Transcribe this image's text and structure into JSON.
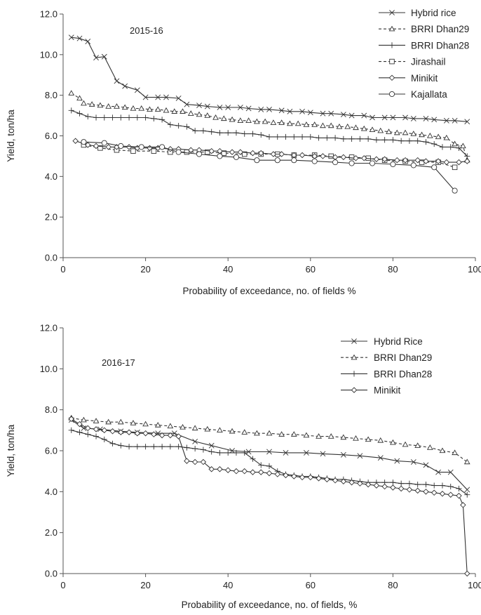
{
  "chart_data": [
    {
      "type": "line",
      "annotation": "2015-16",
      "xlabel": "Probability of exceedance, no. of fields %",
      "ylabel": "Yield, ton/ha",
      "xlim": [
        0,
        100
      ],
      "ylim": [
        0,
        12
      ],
      "xticks": [
        "0",
        "20",
        "40",
        "60",
        "80",
        "100"
      ],
      "yticks": [
        "0.0",
        "2.0",
        "4.0",
        "6.0",
        "8.0",
        "10.0",
        "12.0"
      ],
      "legend_position": "top-right",
      "series": [
        {
          "name": "Hybrid rice",
          "marker": "x",
          "dash": "solid",
          "x": [
            2,
            4,
            6,
            8,
            10,
            13,
            15,
            18,
            20,
            23,
            25,
            28,
            30,
            33,
            35,
            38,
            40,
            43,
            45,
            48,
            50,
            53,
            55,
            58,
            60,
            63,
            65,
            68,
            70,
            73,
            75,
            78,
            80,
            83,
            85,
            88,
            90,
            93,
            95,
            98
          ],
          "y": [
            10.85,
            10.8,
            10.65,
            9.85,
            9.9,
            8.7,
            8.45,
            8.25,
            7.9,
            7.9,
            7.9,
            7.85,
            7.55,
            7.5,
            7.45,
            7.4,
            7.4,
            7.4,
            7.35,
            7.3,
            7.3,
            7.25,
            7.2,
            7.2,
            7.15,
            7.1,
            7.1,
            7.05,
            7.0,
            7.0,
            6.9,
            6.9,
            6.9,
            6.9,
            6.85,
            6.85,
            6.8,
            6.75,
            6.75,
            6.7
          ]
        },
        {
          "name": "BRRI Dhan29",
          "marker": "triangle",
          "dash": "dashed",
          "x": [
            2,
            4,
            5,
            7,
            9,
            11,
            13,
            15,
            17,
            19,
            21,
            23,
            25,
            27,
            29,
            31,
            33,
            35,
            37,
            39,
            41,
            43,
            45,
            47,
            49,
            51,
            53,
            55,
            57,
            59,
            61,
            63,
            65,
            67,
            69,
            71,
            73,
            75,
            77,
            79,
            81,
            83,
            85,
            87,
            89,
            91,
            93,
            95,
            97,
            98
          ],
          "y": [
            8.1,
            7.85,
            7.6,
            7.55,
            7.5,
            7.45,
            7.45,
            7.4,
            7.35,
            7.35,
            7.3,
            7.3,
            7.25,
            7.2,
            7.2,
            7.1,
            7.05,
            7.0,
            6.9,
            6.85,
            6.8,
            6.75,
            6.75,
            6.7,
            6.7,
            6.65,
            6.65,
            6.6,
            6.6,
            6.55,
            6.55,
            6.5,
            6.5,
            6.45,
            6.45,
            6.4,
            6.35,
            6.3,
            6.25,
            6.2,
            6.15,
            6.15,
            6.1,
            6.05,
            6.0,
            5.95,
            5.9,
            5.6,
            5.5,
            4.8
          ]
        },
        {
          "name": "BRRI Dhan28",
          "marker": "plus",
          "dash": "solid",
          "x": [
            2,
            4,
            6,
            8,
            10,
            12,
            14,
            16,
            18,
            20,
            22,
            24,
            26,
            28,
            30,
            32,
            34,
            36,
            38,
            40,
            42,
            44,
            46,
            48,
            50,
            52,
            54,
            56,
            58,
            60,
            62,
            64,
            66,
            68,
            70,
            72,
            74,
            76,
            78,
            80,
            82,
            84,
            86,
            88,
            90,
            92,
            94,
            96,
            98
          ],
          "y": [
            7.25,
            7.1,
            6.95,
            6.9,
            6.9,
            6.9,
            6.9,
            6.9,
            6.9,
            6.9,
            6.85,
            6.8,
            6.55,
            6.5,
            6.45,
            6.25,
            6.25,
            6.2,
            6.15,
            6.15,
            6.15,
            6.1,
            6.1,
            6.05,
            5.95,
            5.95,
            5.95,
            5.95,
            5.95,
            5.95,
            5.9,
            5.9,
            5.9,
            5.85,
            5.85,
            5.85,
            5.85,
            5.8,
            5.8,
            5.8,
            5.75,
            5.75,
            5.75,
            5.7,
            5.6,
            5.45,
            5.45,
            5.4,
            5.0
          ]
        },
        {
          "name": "Jirashail",
          "marker": "square",
          "dash": "dashed",
          "x": [
            5,
            9,
            13,
            17,
            22,
            26,
            30,
            35,
            39,
            44,
            48,
            52,
            56,
            61,
            65,
            70,
            74,
            78,
            83,
            87,
            91,
            95
          ],
          "y": [
            5.55,
            5.4,
            5.3,
            5.25,
            5.25,
            5.2,
            5.2,
            5.2,
            5.15,
            5.1,
            5.1,
            5.1,
            5.05,
            5.05,
            5.0,
            4.95,
            4.9,
            4.8,
            4.75,
            4.7,
            4.7,
            4.45
          ]
        },
        {
          "name": "Minikit",
          "marker": "diamond",
          "dash": "solid",
          "x": [
            3,
            6,
            8,
            11,
            13,
            16,
            18,
            21,
            23,
            26,
            28,
            31,
            33,
            36,
            38,
            41,
            43,
            46,
            48,
            51,
            53,
            56,
            58,
            61,
            63,
            66,
            68,
            71,
            73,
            76,
            78,
            81,
            83,
            86,
            88,
            91,
            93,
            96,
            98
          ],
          "y": [
            5.75,
            5.55,
            5.5,
            5.45,
            5.45,
            5.45,
            5.4,
            5.4,
            5.4,
            5.35,
            5.35,
            5.3,
            5.3,
            5.25,
            5.25,
            5.2,
            5.2,
            5.15,
            5.15,
            5.1,
            5.1,
            5.05,
            5.05,
            5.0,
            5.0,
            4.95,
            4.95,
            4.9,
            4.9,
            4.85,
            4.85,
            4.8,
            4.8,
            4.8,
            4.75,
            4.75,
            4.7,
            4.7,
            4.75
          ]
        },
        {
          "name": "Kajallata",
          "marker": "circle",
          "dash": "solid",
          "x": [
            5,
            10,
            14,
            19,
            24,
            28,
            33,
            38,
            42,
            47,
            52,
            56,
            61,
            66,
            70,
            75,
            80,
            85,
            90,
            95
          ],
          "y": [
            5.7,
            5.65,
            5.5,
            5.45,
            5.45,
            5.2,
            5.1,
            5.0,
            4.95,
            4.8,
            4.8,
            4.8,
            4.75,
            4.7,
            4.65,
            4.65,
            4.6,
            4.55,
            4.45,
            3.3
          ]
        }
      ]
    },
    {
      "type": "line",
      "annotation": "2016-17",
      "xlabel": "Probability of exceedance, no. of fields, %",
      "ylabel": "Yield, ton/ha",
      "xlim": [
        0,
        100
      ],
      "ylim": [
        0,
        12
      ],
      "xticks": [
        "0",
        "20",
        "40",
        "60",
        "80",
        "100"
      ],
      "yticks": [
        "0.0",
        "2.0",
        "4.0",
        "6.0",
        "8.0",
        "10.0",
        "12.0"
      ],
      "legend_position": "top-right",
      "series": [
        {
          "name": "Hybrid Rice",
          "marker": "x",
          "dash": "solid",
          "x": [
            2,
            5,
            9,
            14,
            18,
            23,
            27,
            32,
            36,
            41,
            45,
            50,
            54,
            59,
            63,
            68,
            72,
            77,
            81,
            85,
            88,
            91,
            94,
            98
          ],
          "y": [
            7.5,
            7.1,
            7.05,
            6.95,
            6.9,
            6.85,
            6.85,
            6.45,
            6.25,
            6.0,
            5.95,
            5.95,
            5.9,
            5.9,
            5.85,
            5.8,
            5.75,
            5.65,
            5.5,
            5.45,
            5.3,
            4.95,
            4.95,
            4.1
          ]
        },
        {
          "name": "BRRI Dhan29",
          "marker": "triangle",
          "dash": "dashed",
          "x": [
            2,
            5,
            8,
            11,
            14,
            17,
            20,
            23,
            26,
            29,
            32,
            35,
            38,
            41,
            44,
            47,
            50,
            53,
            56,
            59,
            62,
            65,
            68,
            71,
            74,
            77,
            80,
            83,
            86,
            89,
            92,
            95,
            98
          ],
          "y": [
            7.6,
            7.5,
            7.45,
            7.4,
            7.4,
            7.35,
            7.3,
            7.25,
            7.2,
            7.15,
            7.1,
            7.05,
            7.0,
            6.95,
            6.9,
            6.85,
            6.85,
            6.8,
            6.8,
            6.75,
            6.7,
            6.7,
            6.65,
            6.6,
            6.55,
            6.5,
            6.4,
            6.3,
            6.25,
            6.15,
            6.0,
            5.9,
            5.45
          ]
        },
        {
          "name": "BRRI Dhan28",
          "marker": "plus",
          "dash": "solid",
          "x": [
            2,
            4,
            6,
            8,
            10,
            12,
            14,
            16,
            18,
            20,
            22,
            24,
            26,
            28,
            30,
            32,
            34,
            36,
            38,
            40,
            42,
            44,
            46,
            48,
            50,
            52,
            54,
            56,
            58,
            60,
            62,
            64,
            66,
            68,
            70,
            72,
            74,
            76,
            78,
            80,
            82,
            84,
            86,
            88,
            90,
            92,
            94,
            96,
            98
          ],
          "y": [
            7.0,
            6.9,
            6.8,
            6.7,
            6.55,
            6.35,
            6.25,
            6.2,
            6.2,
            6.2,
            6.2,
            6.2,
            6.2,
            6.2,
            6.15,
            6.1,
            6.05,
            5.95,
            5.9,
            5.9,
            5.9,
            5.9,
            5.6,
            5.3,
            5.25,
            5.0,
            4.85,
            4.8,
            4.75,
            4.75,
            4.7,
            4.65,
            4.6,
            4.6,
            4.55,
            4.5,
            4.45,
            4.45,
            4.45,
            4.45,
            4.4,
            4.4,
            4.35,
            4.35,
            4.3,
            4.3,
            4.25,
            4.15,
            3.85
          ]
        },
        {
          "name": "Minikit",
          "marker": "diamond",
          "dash": "solid",
          "x": [
            2,
            4,
            6,
            8,
            10,
            12,
            14,
            16,
            18,
            20,
            22,
            24,
            26,
            28,
            30,
            32,
            34,
            36,
            38,
            40,
            42,
            44,
            46,
            48,
            50,
            52,
            54,
            56,
            58,
            60,
            62,
            64,
            66,
            68,
            70,
            72,
            74,
            76,
            78,
            80,
            82,
            84,
            86,
            88,
            90,
            92,
            94,
            96,
            97,
            98
          ],
          "y": [
            7.55,
            7.3,
            7.1,
            7.05,
            7.0,
            6.95,
            6.9,
            6.9,
            6.85,
            6.85,
            6.8,
            6.75,
            6.75,
            6.7,
            5.5,
            5.45,
            5.45,
            5.1,
            5.1,
            5.05,
            5.0,
            5.0,
            4.95,
            4.95,
            4.9,
            4.85,
            4.8,
            4.75,
            4.7,
            4.7,
            4.65,
            4.6,
            4.55,
            4.5,
            4.45,
            4.4,
            4.35,
            4.3,
            4.25,
            4.2,
            4.15,
            4.1,
            4.05,
            4.0,
            3.95,
            3.9,
            3.85,
            3.8,
            3.35,
            0.0
          ]
        }
      ]
    }
  ]
}
